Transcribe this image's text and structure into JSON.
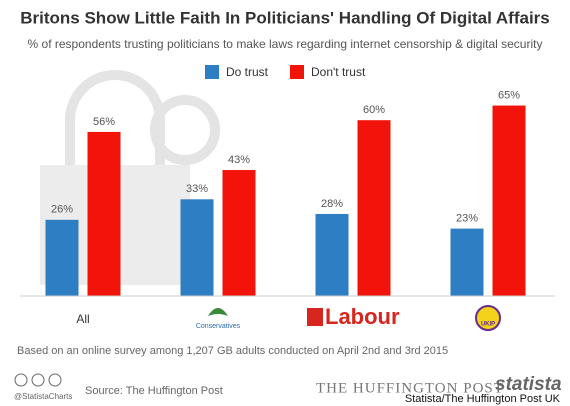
{
  "chart_data": {
    "type": "bar",
    "title": "Britons Show Little Faith In Politicians' Handling Of Digital Affairs",
    "subtitle": "% of respondents trusting politicians to make laws regarding internet censorship & digital security",
    "categories": [
      "All",
      "Conservatives",
      "Labour",
      "UKIP"
    ],
    "series": [
      {
        "name": "Do trust",
        "color": "#2e7ec3",
        "values": [
          26,
          33,
          28,
          23
        ],
        "value_labels": [
          "26%",
          "33%",
          "28%",
          "23%"
        ]
      },
      {
        "name": "Don't trust",
        "color": "#f2140a",
        "values": [
          56,
          43,
          60,
          65
        ],
        "value_labels": [
          "56%",
          "43%",
          "60%",
          "65%"
        ]
      }
    ],
    "note": "Based on an online survey among 1,207 GB adults conducted on April 2nd and 3rd 2015",
    "handle": "@StatistaCharts",
    "source": "Source: The Huffington Post",
    "publisher": "THE HUFFINGTON POST",
    "brand": "statista",
    "credit": "Statista/The Huffington Post UK"
  }
}
